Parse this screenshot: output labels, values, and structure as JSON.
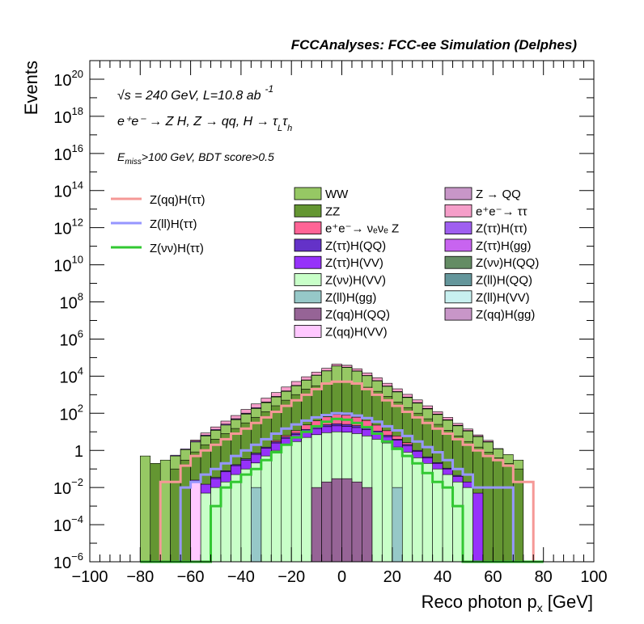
{
  "chart_data": {
    "type": "bar",
    "title": "FCCAnalyses: FCC-ee Simulation (Delphes)",
    "xlabel": "Reco photon p",
    "xlabel_sub": "x",
    "xlabel_unit": "[GeV]",
    "ylabel": "Events",
    "log_y": true,
    "xlim": [
      -100,
      100
    ],
    "ylim_exponent": [
      -6,
      21
    ],
    "x_ticks": [
      "−100",
      "−80",
      "−60",
      "−40",
      "−20",
      "0",
      "20",
      "40",
      "60",
      "80",
      "100"
    ],
    "x_tick_values": [
      -100,
      -80,
      -60,
      -40,
      -20,
      0,
      20,
      40,
      60,
      80,
      100
    ],
    "y_ticks": [
      {
        "exp": -6,
        "base": "10",
        "sup": "−6"
      },
      {
        "exp": -4,
        "base": "10",
        "sup": "−4"
      },
      {
        "exp": -2,
        "base": "10",
        "sup": "−2"
      },
      {
        "exp": 0,
        "base": "1",
        "sup": ""
      },
      {
        "exp": 2,
        "base": "10",
        "sup": "2"
      },
      {
        "exp": 4,
        "base": "10",
        "sup": "4"
      },
      {
        "exp": 6,
        "base": "10",
        "sup": "6"
      },
      {
        "exp": 8,
        "base": "10",
        "sup": "8"
      },
      {
        "exp": 10,
        "base": "10",
        "sup": "10"
      },
      {
        "exp": 12,
        "base": "10",
        "sup": "12"
      },
      {
        "exp": 14,
        "base": "10",
        "sup": "14"
      },
      {
        "exp": 16,
        "base": "10",
        "sup": "16"
      },
      {
        "exp": 18,
        "base": "10",
        "sup": "18"
      },
      {
        "exp": 20,
        "base": "10",
        "sup": "20"
      }
    ],
    "annotations": {
      "energy": "√s = 240 GeV, L=10.8 ab",
      "energy_sup": "-1",
      "process": "e⁺e⁻ → Z H, Z → qq, H → τ",
      "process_sub1": "L",
      "process_tail": "τ",
      "process_sub2": "h",
      "selection_e": "E",
      "selection_sub": "miss",
      "selection_rest": ">100 GeV, BDT score>0.5"
    },
    "bin_edges": [
      -80,
      -76,
      -72,
      -68,
      -64,
      -60,
      -56,
      -52,
      -48,
      -44,
      -40,
      -36,
      -32,
      -28,
      -24,
      -20,
      -16,
      -12,
      -8,
      -4,
      0,
      4,
      8,
      12,
      16,
      20,
      24,
      28,
      32,
      36,
      40,
      44,
      48,
      52,
      56,
      60,
      64,
      68,
      72,
      76,
      80
    ],
    "stack_order": [
      "Z(qq)H(VV)",
      "Z(qq)H(QQ)",
      "Z(ll)H(gg)",
      "Z(νν)H(VV)",
      "Z(ττ)H(VV)",
      "Z(ττ)H(QQ)",
      "e⁺e⁻→ νₑνₑ Z",
      "ZZ",
      "WW",
      "Z(qq)H(gg)",
      "Z(ll)H(VV)",
      "Z(ll)H(QQ)",
      "Z(νν)H(QQ)",
      "Z(ττ)H(gg)",
      "Z(ττ)H(ττ)",
      "e⁺e⁻→ ττ",
      "Z → QQ"
    ],
    "stacked_series": [
      {
        "name": "Z → QQ",
        "color": "#c896c8",
        "values": [
          0,
          0,
          0,
          0,
          0,
          0,
          0,
          0,
          0,
          0,
          0,
          0,
          0,
          0,
          0,
          0,
          0,
          0,
          0,
          0,
          1.0,
          0,
          0,
          0,
          0,
          0,
          0,
          0,
          0,
          0,
          0,
          0,
          0,
          0,
          0,
          0,
          0,
          0,
          0,
          0
        ]
      },
      {
        "name": "e⁺e⁻→ ττ",
        "color": "#f59ec9",
        "values": [
          0,
          0,
          0,
          0,
          0,
          0.5,
          2,
          5,
          12,
          25,
          60,
          120,
          250,
          500,
          1000,
          2000,
          3000,
          5000,
          7000,
          9000,
          8000,
          6000,
          4000,
          2500,
          1200,
          600,
          300,
          150,
          70,
          30,
          15,
          6,
          2.5,
          1,
          0.5,
          0,
          0,
          0,
          0,
          0
        ]
      },
      {
        "name": "Z(ττ)H(ττ)",
        "color": "#9f5ff0",
        "values": [
          0,
          0,
          0,
          0.05,
          0.1,
          0.3,
          0.6,
          1.2,
          2.5,
          5,
          9,
          15,
          25,
          40,
          70,
          110,
          180,
          280,
          400,
          500,
          480,
          380,
          250,
          160,
          100,
          60,
          35,
          20,
          10,
          5,
          2.5,
          1.2,
          0.6,
          0.3,
          0.15,
          0.05,
          0,
          0,
          0,
          0
        ]
      },
      {
        "name": "Z(ττ)H(gg)",
        "color": "#c864f0",
        "values": [
          0,
          0,
          0,
          0,
          0,
          0.005,
          0.02,
          0.05,
          0.1,
          0.2,
          0.5,
          1,
          2,
          4,
          7,
          12,
          20,
          30,
          40,
          50,
          45,
          35,
          25,
          15,
          8,
          4,
          2,
          1,
          0.5,
          0.2,
          0.1,
          0.05,
          0.02,
          0,
          0,
          0,
          0,
          0,
          0,
          0
        ]
      },
      {
        "name": "Z(νν)H(QQ)",
        "color": "#648c64",
        "values": [
          0,
          0,
          0,
          0,
          0,
          0,
          0,
          0.01,
          0.03,
          0.1,
          0.3,
          0.8,
          2,
          4,
          8,
          15,
          25,
          40,
          60,
          80,
          75,
          55,
          35,
          20,
          10,
          5,
          2,
          0.8,
          0.3,
          0.1,
          0.03,
          0.01,
          0,
          0,
          0,
          0,
          0,
          0,
          0,
          0
        ]
      },
      {
        "name": "Z(ll)H(QQ)",
        "color": "#64969b",
        "values": [
          0,
          0,
          0,
          0,
          0,
          0,
          0,
          0,
          0.01,
          0.03,
          0.08,
          0.2,
          0.5,
          1,
          2,
          4,
          7,
          11,
          15,
          18,
          17,
          13,
          9,
          5,
          3,
          1.5,
          0.6,
          0.2,
          0.08,
          0.03,
          0.01,
          0,
          0,
          0,
          0,
          0,
          0,
          0,
          0,
          0
        ]
      },
      {
        "name": "Z(ll)H(VV)",
        "color": "#c8f0f0",
        "values": [
          0,
          0,
          0,
          0,
          0,
          0.02,
          0.05,
          0.1,
          0.2,
          0.4,
          0.8,
          1.5,
          2.5,
          4,
          6,
          8,
          10,
          12,
          13,
          14,
          13,
          12,
          10,
          8,
          6,
          4,
          2.5,
          1.5,
          0.8,
          0.4,
          0.2,
          0.1,
          0.05,
          0.02,
          0.01,
          0.005,
          0,
          0,
          0,
          0
        ]
      },
      {
        "name": "Z(qq)H(gg)",
        "color": "#c896c8",
        "values": [
          0,
          0,
          0,
          0,
          0,
          0,
          0,
          0,
          0,
          0.005,
          0.02,
          0.05,
          0.1,
          0.3,
          0.6,
          1,
          2,
          3,
          4,
          5,
          4.5,
          3.5,
          2.5,
          1.5,
          0.8,
          0.4,
          0.2,
          0.1,
          0.05,
          0.02,
          0.005,
          0,
          0,
          0,
          0,
          0,
          0,
          0,
          0,
          0
        ]
      },
      {
        "name": "WW",
        "color": "#96c864",
        "values": [
          0.5,
          0,
          0.3,
          0.4,
          0.8,
          2,
          4,
          8,
          15,
          30,
          60,
          120,
          250,
          500,
          1000,
          2000,
          4000,
          8000,
          15000,
          30000,
          25000,
          15000,
          8000,
          4000,
          2000,
          1000,
          500,
          250,
          120,
          60,
          30,
          15,
          8,
          4,
          2,
          0.8,
          0.4,
          0.2,
          0,
          0
        ]
      },
      {
        "name": "ZZ",
        "color": "#649632",
        "values": [
          0,
          0.2,
          0,
          0.1,
          0.3,
          0.8,
          2,
          4,
          8,
          15,
          30,
          60,
          120,
          250,
          500,
          1000,
          2000,
          3000,
          4000,
          5000,
          4500,
          3500,
          2500,
          1500,
          800,
          400,
          200,
          100,
          50,
          25,
          12,
          6,
          3,
          1.5,
          0.8,
          0.4,
          0.2,
          0.1,
          0,
          0
        ]
      },
      {
        "name": "e⁺e⁻→ νₑνₑ Z",
        "color": "#ff6496",
        "values": [
          0,
          0,
          0,
          0,
          0,
          0,
          0,
          0,
          0,
          0,
          0,
          0,
          0,
          0.5,
          1,
          3,
          10,
          20,
          40,
          60,
          55,
          40,
          25,
          12,
          5,
          2,
          0.5,
          0,
          0,
          0,
          0,
          0,
          0,
          0,
          0,
          0,
          0,
          0,
          0,
          0
        ]
      },
      {
        "name": "Z(ττ)H(QQ)",
        "color": "#6432c8",
        "values": [
          0,
          0,
          0,
          0,
          0,
          0,
          0,
          0.005,
          0.01,
          0.02,
          0.05,
          0.1,
          0.2,
          0.4,
          0.8,
          1.5,
          2.5,
          4,
          5,
          6,
          5.5,
          4.5,
          3,
          2,
          1,
          0.5,
          0.3,
          0.1,
          0.05,
          0.02,
          0.01,
          0.005,
          0,
          0,
          0,
          0,
          0,
          0,
          0,
          0
        ]
      },
      {
        "name": "Z(ττ)H(VV)",
        "color": "#9632fa",
        "values": [
          0,
          0,
          0,
          0,
          0,
          0.005,
          0.01,
          0.02,
          0.05,
          0.1,
          0.2,
          0.4,
          0.8,
          1.5,
          2.5,
          4,
          6,
          8,
          10,
          11,
          10,
          9,
          7,
          5,
          3,
          2,
          1,
          0.5,
          0.2,
          0.1,
          0.05,
          0.02,
          0.01,
          0.005,
          0,
          0,
          0,
          0,
          0,
          0
        ]
      },
      {
        "name": "Z(νν)H(VV)",
        "color": "#c8ffc8",
        "values": [
          0,
          0,
          0,
          0,
          0,
          0,
          0.005,
          0.01,
          0.02,
          0.05,
          0.1,
          0.2,
          0.5,
          1,
          2,
          3,
          5,
          7,
          9,
          10,
          9.5,
          8,
          6,
          4,
          2.5,
          1.5,
          0.8,
          0.4,
          0.2,
          0.1,
          0.05,
          0.02,
          0.01,
          0,
          0,
          0,
          0,
          0,
          0,
          0
        ]
      },
      {
        "name": "Z(ll)H(gg)",
        "color": "#96c8c8",
        "values": [
          0,
          0,
          0,
          0,
          0,
          0,
          0,
          0,
          0,
          0,
          0,
          0.01,
          0,
          0,
          0,
          0,
          0,
          0,
          0,
          0,
          0,
          0,
          0,
          0,
          0,
          0.01,
          0,
          0,
          0,
          0,
          0,
          0,
          0,
          0,
          0,
          0,
          0,
          0,
          0,
          0
        ]
      },
      {
        "name": "Z(qq)H(QQ)",
        "color": "#966496",
        "values": [
          0,
          0,
          0,
          0,
          0,
          0,
          0,
          0,
          0,
          0,
          0,
          0,
          0,
          0,
          0,
          0,
          0,
          0.01,
          0.02,
          0.03,
          0.03,
          0.02,
          0.01,
          0,
          0,
          0,
          0,
          0,
          0,
          0,
          0,
          0,
          0,
          0,
          0,
          0,
          0,
          0,
          0,
          0
        ]
      },
      {
        "name": "Z(qq)H(VV)",
        "color": "#ffc8ff",
        "values": [
          0,
          0,
          0,
          0,
          0,
          0.02,
          0,
          0,
          0,
          0,
          0,
          0,
          0,
          0,
          0,
          0,
          0,
          0,
          0,
          0,
          0,
          0,
          0,
          0,
          0,
          0,
          0,
          0,
          0,
          0,
          0,
          0,
          0,
          0,
          0,
          0,
          0,
          0,
          0,
          0
        ]
      }
    ],
    "line_series": [
      {
        "name": "Z(qq)H(ττ)",
        "color": "#f59896",
        "values": [
          0,
          0,
          0.02,
          0.02,
          0.15,
          0.5,
          1,
          2,
          4,
          8,
          15,
          30,
          60,
          120,
          250,
          500,
          1000,
          2000,
          4000,
          5000,
          5000,
          4000,
          2000,
          1000,
          500,
          250,
          120,
          60,
          30,
          15,
          8,
          4,
          2,
          1,
          0.5,
          0.3,
          0.15,
          0.02,
          0.02,
          0
        ]
      },
      {
        "name": "Z(ll)H(ττ)",
        "color": "#9696ff",
        "values": [
          0,
          0,
          0,
          0,
          0.01,
          0.02,
          0.05,
          0.1,
          0.2,
          0.5,
          1,
          2,
          4,
          8,
          15,
          25,
          40,
          60,
          80,
          100,
          95,
          75,
          55,
          35,
          20,
          12,
          6,
          3,
          1.5,
          0.8,
          0.3,
          0.1,
          0.05,
          0.01,
          0.01,
          0.01,
          0.01,
          0,
          0,
          0
        ]
      },
      {
        "name": "Z(νν)H(ττ)",
        "color": "#32c832",
        "values": [
          0,
          0,
          0,
          0,
          0,
          0,
          0,
          0.001,
          0.01,
          0.02,
          0.05,
          0.1,
          0.3,
          0.8,
          2,
          5,
          10,
          20,
          35,
          50,
          45,
          30,
          18,
          8,
          3,
          1.2,
          0.5,
          0.2,
          0.06,
          0.02,
          0.01,
          0.001,
          0,
          0,
          0,
          0,
          0,
          0,
          0,
          0
        ]
      }
    ],
    "legend_left": [
      "Z(qq)H(ττ)",
      "Z(ll)H(ττ)",
      "Z(νν)H(ττ)"
    ],
    "legend_mid": [
      "WW",
      "ZZ",
      "e⁺e⁻→ νₑνₑ Z",
      "Z(ττ)H(QQ)",
      "Z(ττ)H(VV)",
      "Z(νν)H(VV)",
      "Z(ll)H(gg)",
      "Z(qq)H(QQ)",
      "Z(qq)H(VV)"
    ],
    "legend_right": [
      "Z → QQ",
      "e⁺e⁻→ ττ",
      "Z(ττ)H(ττ)",
      "Z(ττ)H(gg)",
      "Z(νν)H(QQ)",
      "Z(ll)H(QQ)",
      "Z(ll)H(VV)",
      "Z(qq)H(gg)"
    ],
    "legend_colors": {
      "Z(qq)H(ττ)": "#f59896",
      "Z(ll)H(ττ)": "#9696ff",
      "Z(νν)H(ττ)": "#32c832",
      "WW": "#96c864",
      "ZZ": "#649632",
      "e⁺e⁻→ νₑνₑ Z": "#ff6496",
      "Z(ττ)H(QQ)": "#6432c8",
      "Z(ττ)H(VV)": "#9632fa",
      "Z(νν)H(VV)": "#c8ffc8",
      "Z(ll)H(gg)": "#96c8c8",
      "Z(qq)H(QQ)": "#966496",
      "Z(qq)H(VV)": "#ffc8ff",
      "Z → QQ": "#c896c8",
      "e⁺e⁻→ ττ": "#f59ec9",
      "Z(ττ)H(ττ)": "#9f5ff0",
      "Z(ττ)H(gg)": "#c864f0",
      "Z(νν)H(QQ)": "#648c64",
      "Z(ll)H(QQ)": "#64969b",
      "Z(ll)H(VV)": "#c8f0f0",
      "Z(qq)H(gg)": "#c896c8"
    }
  }
}
